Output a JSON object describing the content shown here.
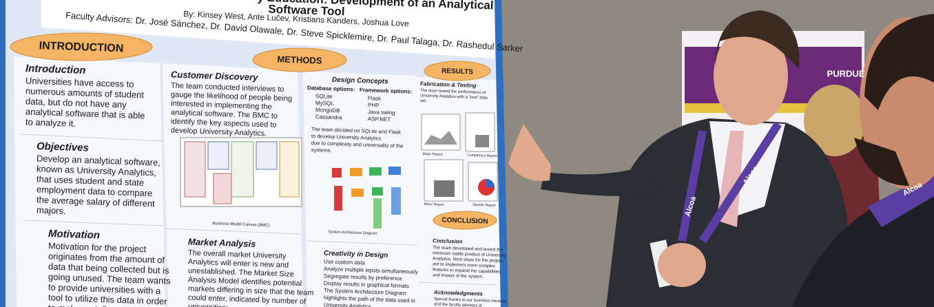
{
  "poster": {
    "title_lines": [
      "y Education: Development of an Analytical",
      "Software Tool"
    ],
    "authors": "By: Kinsey West, Ante Lučev, Kristians Kanders, Joshua Love",
    "advisors": "Faculty Advisors: Dr. José Sánchez, Dr. David Olawale, Dr. Steve Spicklemire, Dr. Paul Talaga, Dr. Rashedul Sarker",
    "banners": [
      "INTRODUCTION",
      "METHODS",
      "RESULTS",
      "CONCLUSION"
    ],
    "sections": [
      {
        "heading": "Introduction",
        "lines": [
          "Universities have access to",
          "numerous amounts of student",
          "data, but do not have any",
          "analytical software that is able",
          "to analyze it."
        ]
      },
      {
        "heading": "Objectives",
        "lines": [
          "Develop an analytical software,",
          "known as University Analytics,",
          "that uses student and state",
          "employment data to compare",
          "the average salary of different",
          "majors."
        ]
      },
      {
        "heading": "Motivation",
        "lines": [
          "Motivation for the project",
          "originates from the amount of",
          "data that being collected but is",
          "going unused. The team wants",
          "to provide universities with a",
          "tool to utilize this data in order",
          "to make an influential impact."
        ]
      },
      {
        "heading": "Customer Discovery",
        "lines": [
          "The team conducted interviews to",
          "gauge the likelihood of people being",
          "interested in implementing the",
          "analytical software. The BMC to",
          "identify the key aspects used to",
          "develop University Analytics."
        ]
      },
      {
        "heading": "Market Analysis",
        "lines": [
          "The overall market University",
          "Analytics will enter is new and",
          "unestablished. The Market Size",
          "Analysis Model identifies potential",
          "markets differing in size that the team",
          "could enter, indicated by number of",
          "universities:"
        ]
      },
      {
        "heading": "Creativity in Design",
        "lines": [
          "Use custom data",
          "Analyze multiple inputs simultaneously",
          "Segregate results by preference",
          "Display results in graphical formats",
          "The System Architecture Diagram",
          "highlights the path of the data used in",
          "University Analytics."
        ]
      },
      {
        "heading": "Fabrication & Testing",
        "lines": [
          "The team tested the performance of",
          "University Analytics with a \"test\" data",
          "set."
        ]
      },
      {
        "heading": "Conclusion",
        "lines": [
          "The team developed and tested the",
          "minimum viable product of University",
          "Analytics. Next steps for the project",
          "are to implement more complex",
          "features to expand the capabilities",
          "and impact of the system."
        ]
      },
      {
        "heading": "Acknowledgments",
        "lines": [
          "Special thanks to our business mentors",
          "and the faculty advisors of"
        ]
      }
    ],
    "design": {
      "heading": "Design Concepts",
      "db_label": "Database options:",
      "db": [
        "SQLite",
        "MySQL",
        "MongoDB",
        "Cassandra"
      ],
      "fw_label": "Framework options:",
      "fw": [
        "Flask",
        "PHP",
        "Java swing",
        "ASP.NET"
      ],
      "lines": [
        "The team decided on SQLite and Flask",
        "to develop University Analytics",
        "due to complexity and universality of the",
        "systems."
      ]
    },
    "captions": [
      "Business Model Canvas (BMC)",
      "System Architecture Diagram",
      "Major Report",
      "Comparison Report",
      "Minor Report",
      "Gender Report"
    ]
  },
  "background": {
    "lanyard": "Alcoa",
    "sign": "PURDUE"
  }
}
